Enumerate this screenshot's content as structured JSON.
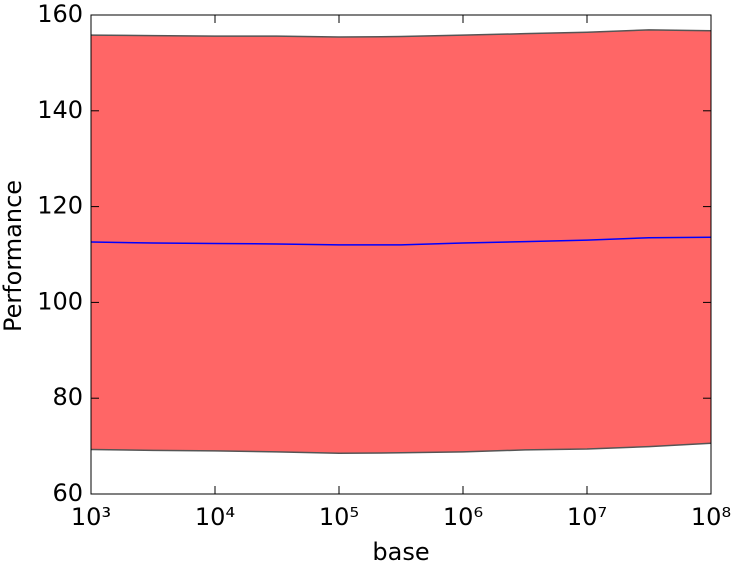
{
  "chart_data": {
    "type": "band-line",
    "xlabel": "base",
    "ylabel": "Performance",
    "xscale": "log",
    "x": [
      1000,
      3162.28,
      10000,
      31622.8,
      100000,
      316228,
      1000000,
      3162280,
      10000000,
      31622800,
      100000000
    ],
    "band": {
      "upper": [
        155.8,
        155.7,
        155.6,
        155.6,
        155.4,
        155.5,
        155.8,
        156.1,
        156.4,
        156.9,
        156.7
      ],
      "lower": [
        69.3,
        69.1,
        69.0,
        68.8,
        68.5,
        68.6,
        68.8,
        69.2,
        69.4,
        69.9,
        70.6
      ],
      "color": "#ff6666",
      "edgecolor": "#555555"
    },
    "line": {
      "values": [
        112.6,
        112.4,
        112.3,
        112.2,
        112.0,
        112.0,
        112.4,
        112.7,
        113.0,
        113.5,
        113.6
      ],
      "color": "#0000ff"
    },
    "xlim": [
      1000,
      100000000
    ],
    "xticks": [
      {
        "value": 1000,
        "label": "10³"
      },
      {
        "value": 10000,
        "label": "10⁴"
      },
      {
        "value": 100000,
        "label": "10⁵"
      },
      {
        "value": 1000000,
        "label": "10⁶"
      },
      {
        "value": 10000000,
        "label": "10⁷"
      },
      {
        "value": 100000000,
        "label": "10⁸"
      }
    ],
    "ylim": [
      60,
      160
    ],
    "yticks": [
      60,
      80,
      100,
      120,
      140,
      160
    ]
  }
}
